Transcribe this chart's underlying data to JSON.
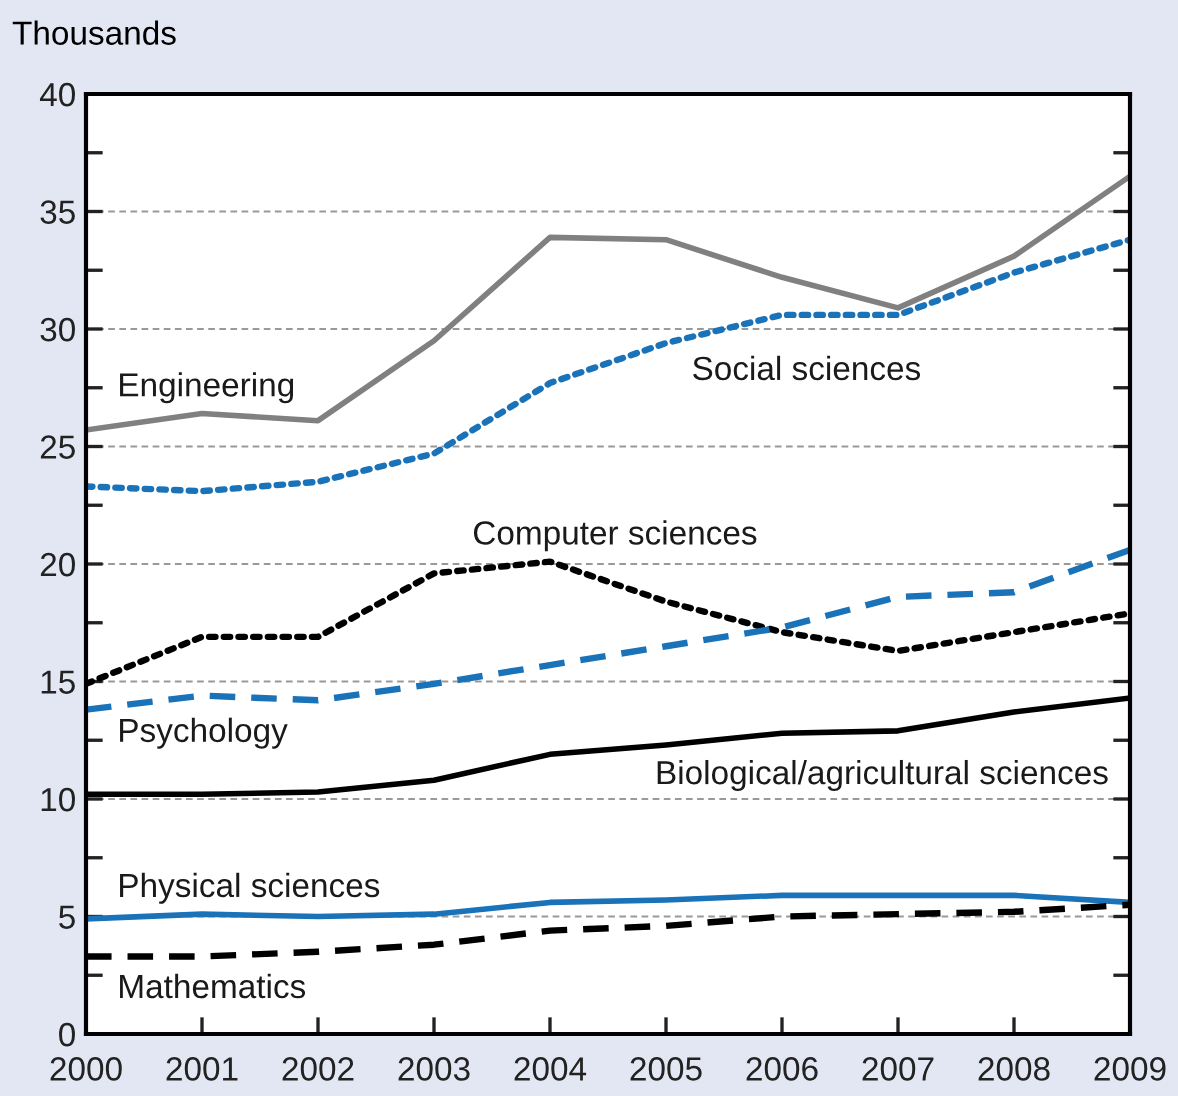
{
  "chart_data": {
    "type": "line",
    "ylabel": "Thousands",
    "x": [
      2000,
      2001,
      2002,
      2003,
      2004,
      2005,
      2006,
      2007,
      2008,
      2009
    ],
    "xlim": [
      2000,
      2009
    ],
    "xticks": [
      2000,
      2001,
      2002,
      2003,
      2004,
      2005,
      2006,
      2007,
      2008,
      2009
    ],
    "ylim": [
      0,
      40
    ],
    "yticks": [
      0,
      {
        "value": 2.5,
        "label": null
      },
      5,
      {
        "value": 7.5,
        "label": null
      },
      10,
      {
        "value": 12.5,
        "label": null
      },
      15,
      {
        "value": 17.5,
        "label": null
      },
      20,
      {
        "value": 22.5,
        "label": null
      },
      25,
      {
        "value": 27.5,
        "label": null
      },
      30,
      {
        "value": 32.5,
        "label": null
      },
      35,
      {
        "value": 37.5,
        "label": null
      },
      40
    ],
    "grid": "y",
    "legend": false,
    "marker": "none",
    "series": [
      {
        "name": "Engineering",
        "color": "#808080",
        "line_style": "solid",
        "values": [
          25.7,
          26.4,
          26.1,
          29.5,
          33.9,
          33.8,
          32.2,
          30.9,
          33.1,
          36.5
        ]
      },
      {
        "name": "Social sciences",
        "color": "#1a72b8",
        "line_style": "dotted",
        "values": [
          23.3,
          23.1,
          23.5,
          24.7,
          27.7,
          29.4,
          30.6,
          30.6,
          32.4,
          33.8
        ]
      },
      {
        "name": "Computer sciences",
        "color": "#000000",
        "line_style": "dotted",
        "values": [
          14.9,
          16.9,
          16.9,
          19.6,
          20.1,
          18.4,
          17.1,
          16.3,
          17.1,
          17.9
        ]
      },
      {
        "name": "Psychology",
        "color": "#1a72b8",
        "line_style": "dashed",
        "values": [
          13.8,
          14.4,
          14.2,
          14.9,
          15.7,
          16.5,
          17.3,
          18.6,
          18.8,
          20.6
        ]
      },
      {
        "name": "Biological/agricultural sciences",
        "color": "#000000",
        "line_style": "solid",
        "values": [
          10.2,
          10.2,
          10.3,
          10.8,
          11.9,
          12.3,
          12.8,
          12.9,
          13.7,
          14.3
        ]
      },
      {
        "name": "Physical sciences",
        "color": "#1a72b8",
        "line_style": "solid",
        "values": [
          4.9,
          5.1,
          5.0,
          5.1,
          5.6,
          5.7,
          5.9,
          5.9,
          5.9,
          5.6
        ]
      },
      {
        "name": "Mathematics",
        "color": "#000000",
        "line_style": "dashed",
        "values": [
          3.3,
          3.3,
          3.5,
          3.8,
          4.4,
          4.6,
          5.0,
          5.1,
          5.2,
          5.5
        ]
      }
    ]
  }
}
